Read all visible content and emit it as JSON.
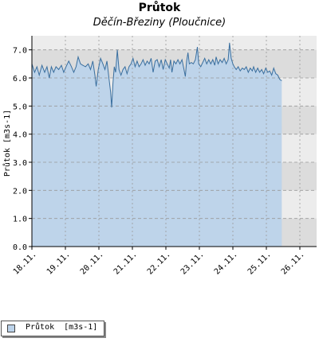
{
  "chart_data": {
    "type": "area",
    "title": "Průtok",
    "subtitle": "Děčín-Březiny (Ploučnice)",
    "ylabel": "Průtok [m3s-1]",
    "xlabel": "",
    "ylim": [
      0,
      7.5
    ],
    "xlim": [
      "18.11.",
      "26.11. 12:00"
    ],
    "yticks": [
      "0.0",
      "1.0",
      "2.0",
      "3.0",
      "4.0",
      "5.0",
      "6.0",
      "7.0"
    ],
    "xticks": [
      "18.11.",
      "19.11.",
      "20.11.",
      "21.11.",
      "22.11.",
      "23.11.",
      "24.11.",
      "25.11.",
      "26.11."
    ],
    "grid": true,
    "legend": "bottom-left",
    "colors": {
      "fill": "#bcd3ea",
      "line": "#3a6f9f",
      "band_dark": "#dcdcdc",
      "band_light": "#ececec"
    },
    "series": [
      {
        "name": "Průtok [m3s-1]",
        "points": [
          [
            0.0,
            6.5
          ],
          [
            0.08,
            6.2
          ],
          [
            0.15,
            6.4
          ],
          [
            0.22,
            6.1
          ],
          [
            0.3,
            6.45
          ],
          [
            0.38,
            6.2
          ],
          [
            0.45,
            6.4
          ],
          [
            0.52,
            6.0
          ],
          [
            0.58,
            6.4
          ],
          [
            0.65,
            6.2
          ],
          [
            0.72,
            6.4
          ],
          [
            0.8,
            6.3
          ],
          [
            0.88,
            6.45
          ],
          [
            0.95,
            6.2
          ],
          [
            1.02,
            6.4
          ],
          [
            1.1,
            6.6
          ],
          [
            1.18,
            6.4
          ],
          [
            1.25,
            6.2
          ],
          [
            1.32,
            6.4
          ],
          [
            1.38,
            6.75
          ],
          [
            1.45,
            6.5
          ],
          [
            1.52,
            6.45
          ],
          [
            1.6,
            6.4
          ],
          [
            1.68,
            6.5
          ],
          [
            1.75,
            6.3
          ],
          [
            1.82,
            6.6
          ],
          [
            1.88,
            6.1
          ],
          [
            1.92,
            5.7
          ],
          [
            1.98,
            6.3
          ],
          [
            2.05,
            6.7
          ],
          [
            2.12,
            6.5
          ],
          [
            2.18,
            6.3
          ],
          [
            2.24,
            6.6
          ],
          [
            2.3,
            6.0
          ],
          [
            2.35,
            5.5
          ],
          [
            2.38,
            4.95
          ],
          [
            2.42,
            5.8
          ],
          [
            2.46,
            6.4
          ],
          [
            2.5,
            6.2
          ],
          [
            2.55,
            7.0
          ],
          [
            2.6,
            6.3
          ],
          [
            2.66,
            6.1
          ],
          [
            2.72,
            6.3
          ],
          [
            2.78,
            6.4
          ],
          [
            2.84,
            6.15
          ],
          [
            2.9,
            6.4
          ],
          [
            2.96,
            6.5
          ],
          [
            3.02,
            6.7
          ],
          [
            3.08,
            6.4
          ],
          [
            3.14,
            6.6
          ],
          [
            3.2,
            6.4
          ],
          [
            3.26,
            6.5
          ],
          [
            3.32,
            6.65
          ],
          [
            3.38,
            6.45
          ],
          [
            3.44,
            6.6
          ],
          [
            3.5,
            6.5
          ],
          [
            3.56,
            6.7
          ],
          [
            3.62,
            6.2
          ],
          [
            3.68,
            6.6
          ],
          [
            3.74,
            6.65
          ],
          [
            3.8,
            6.4
          ],
          [
            3.86,
            6.65
          ],
          [
            3.92,
            6.3
          ],
          [
            3.98,
            6.65
          ],
          [
            4.04,
            6.5
          ],
          [
            4.1,
            6.35
          ],
          [
            4.14,
            6.65
          ],
          [
            4.18,
            6.2
          ],
          [
            4.24,
            6.6
          ],
          [
            4.3,
            6.5
          ],
          [
            4.36,
            6.65
          ],
          [
            4.42,
            6.5
          ],
          [
            4.48,
            6.65
          ],
          [
            4.54,
            6.3
          ],
          [
            4.58,
            6.05
          ],
          [
            4.62,
            6.6
          ],
          [
            4.66,
            6.9
          ],
          [
            4.7,
            6.5
          ],
          [
            4.76,
            6.55
          ],
          [
            4.82,
            6.5
          ],
          [
            4.88,
            6.65
          ],
          [
            4.94,
            7.1
          ],
          [
            4.98,
            6.5
          ],
          [
            5.04,
            6.4
          ],
          [
            5.1,
            6.55
          ],
          [
            5.16,
            6.7
          ],
          [
            5.22,
            6.5
          ],
          [
            5.28,
            6.65
          ],
          [
            5.34,
            6.5
          ],
          [
            5.4,
            6.65
          ],
          [
            5.46,
            6.45
          ],
          [
            5.5,
            6.75
          ],
          [
            5.56,
            6.5
          ],
          [
            5.62,
            6.65
          ],
          [
            5.68,
            6.55
          ],
          [
            5.74,
            6.7
          ],
          [
            5.8,
            6.5
          ],
          [
            5.86,
            6.65
          ],
          [
            5.9,
            7.25
          ],
          [
            5.95,
            6.7
          ],
          [
            6.0,
            6.5
          ],
          [
            6.04,
            6.4
          ],
          [
            6.1,
            6.3
          ],
          [
            6.16,
            6.4
          ],
          [
            6.22,
            6.25
          ],
          [
            6.28,
            6.35
          ],
          [
            6.34,
            6.3
          ],
          [
            6.4,
            6.4
          ],
          [
            6.46,
            6.2
          ],
          [
            6.52,
            6.35
          ],
          [
            6.58,
            6.25
          ],
          [
            6.62,
            6.4
          ],
          [
            6.68,
            6.2
          ],
          [
            6.74,
            6.35
          ],
          [
            6.8,
            6.2
          ],
          [
            6.86,
            6.3
          ],
          [
            6.92,
            6.15
          ],
          [
            6.98,
            6.35
          ],
          [
            7.04,
            6.2
          ],
          [
            7.1,
            6.25
          ],
          [
            7.16,
            6.1
          ],
          [
            7.22,
            6.35
          ],
          [
            7.28,
            6.15
          ],
          [
            7.34,
            6.1
          ],
          [
            7.4,
            5.95
          ],
          [
            7.46,
            5.9
          ]
        ]
      }
    ]
  },
  "legend": {
    "label": "Průtok  [m3s-1]"
  }
}
